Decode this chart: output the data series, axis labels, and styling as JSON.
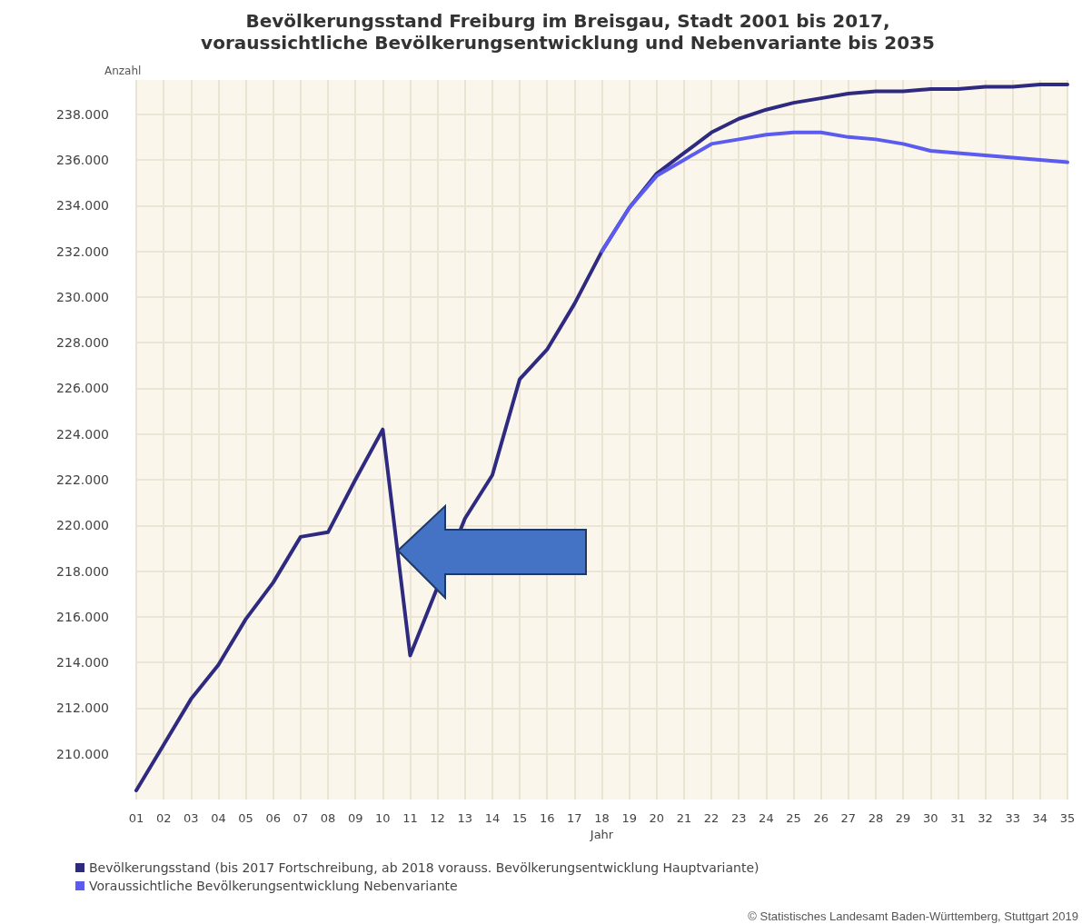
{
  "chart_data": {
    "type": "line",
    "title": "Bevölkerungsstand Freiburg im Breisgau, Stadt 2001 bis 2017,\nvoraussichtliche Bevölkerungsentwicklung und Nebenvariante bis 2035",
    "ylabel": "Anzahl",
    "xlabel": "Jahr",
    "categories": [
      "01",
      "02",
      "03",
      "04",
      "05",
      "06",
      "07",
      "08",
      "09",
      "10",
      "11",
      "12",
      "13",
      "14",
      "15",
      "16",
      "17",
      "18",
      "19",
      "20",
      "21",
      "22",
      "23",
      "24",
      "25",
      "26",
      "27",
      "28",
      "29",
      "30",
      "31",
      "32",
      "33",
      "34",
      "35"
    ],
    "series": [
      {
        "name": "Bevölkerungsstand (bis 2017 Fortschreibung, ab 2018 vorauss. Bevölkerungsentwicklung Hauptvariante)",
        "color": "#2e2a80",
        "values": [
          208400,
          210400,
          212400,
          213900,
          215900,
          217500,
          219500,
          219700,
          222000,
          224200,
          214300,
          null,
          220300,
          222200,
          226400,
          227700,
          229700,
          232000,
          233900,
          235400,
          236300,
          237200,
          237800,
          238200,
          238500,
          238700,
          238900,
          239000,
          239000,
          239100,
          239100,
          239200,
          239200,
          239300,
          239300
        ]
      },
      {
        "name": "Voraussichtliche Bevölkerungsentwicklung Nebenvariante",
        "color": "#5b5bef",
        "values": [
          null,
          null,
          null,
          null,
          null,
          null,
          null,
          null,
          null,
          null,
          null,
          null,
          null,
          null,
          null,
          null,
          null,
          232000,
          233900,
          235300,
          236000,
          236700,
          236900,
          237100,
          237200,
          237200,
          237000,
          236900,
          236700,
          236400,
          236300,
          236200,
          236100,
          236000,
          235900
        ]
      }
    ],
    "ylim": [
      208000,
      239500
    ],
    "yticks": [
      {
        "value": 210000,
        "label": "210.000"
      },
      {
        "value": 212000,
        "label": "212.000"
      },
      {
        "value": 214000,
        "label": "214.000"
      },
      {
        "value": 216000,
        "label": "216.000"
      },
      {
        "value": 218000,
        "label": "218.000"
      },
      {
        "value": 220000,
        "label": "220.000"
      },
      {
        "value": 222000,
        "label": "222.000"
      },
      {
        "value": 224000,
        "label": "224.000"
      },
      {
        "value": 226000,
        "label": "226.000"
      },
      {
        "value": 228000,
        "label": "228.000"
      },
      {
        "value": 230000,
        "label": "230.000"
      },
      {
        "value": 232000,
        "label": "232.000"
      },
      {
        "value": 234000,
        "label": "234.000"
      },
      {
        "value": 236000,
        "label": "236.000"
      },
      {
        "value": 238000,
        "label": "238.000"
      }
    ],
    "grid": true,
    "legend": "bottom",
    "marker": "none",
    "line_style": "solid",
    "annotations": [
      "© Statistisches Landesamt Baden-Württemberg, Stuttgart 2019"
    ]
  }
}
